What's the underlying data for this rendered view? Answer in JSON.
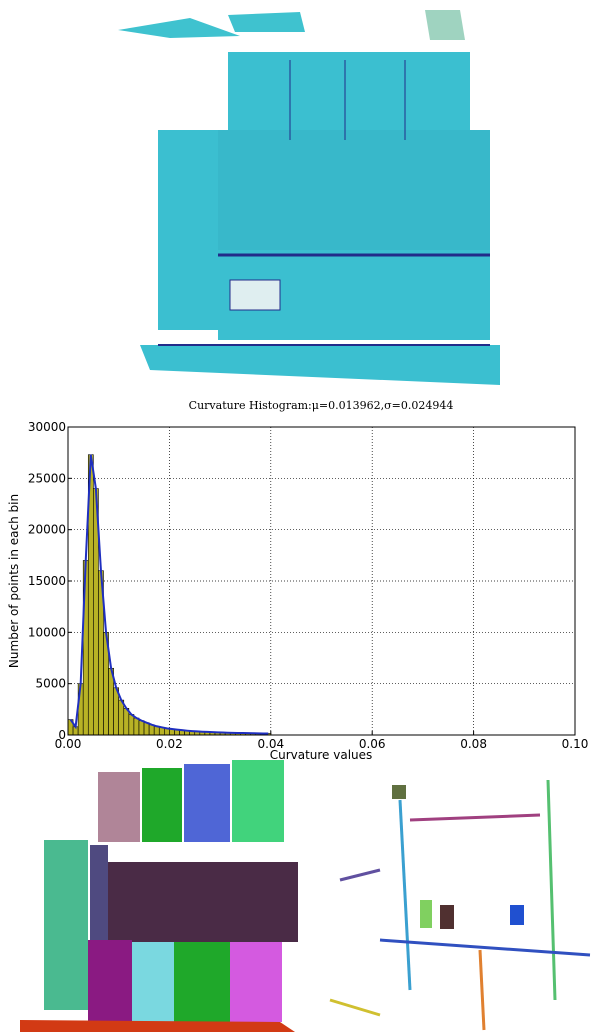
{
  "chart_data": {
    "type": "histogram",
    "title": "Curvature Histogram:μ=0.013962,σ=0.024944",
    "x_label": "Curvature values",
    "y_label": "Number of points in each bin",
    "bins": [
      0,
      0.001,
      0.002,
      0.003,
      0.004,
      0.005,
      0.006,
      0.007,
      0.008,
      0.009,
      0.01,
      0.011,
      0.012,
      0.013,
      0.014,
      0.015,
      0.016,
      0.017,
      0.018,
      0.019,
      0.02,
      0.021,
      0.022,
      0.023,
      0.024,
      0.025,
      0.026,
      0.027,
      0.028,
      0.029,
      0.03,
      0.031,
      0.032,
      0.033,
      0.034,
      0.035,
      0.036,
      0.037,
      0.038,
      0.039,
      0.04
    ],
    "values": [
      1500,
      800,
      5000,
      17000,
      27300,
      24000,
      16000,
      10000,
      6500,
      4600,
      3400,
      2600,
      2000,
      1650,
      1400,
      1200,
      1000,
      850,
      750,
      650,
      580,
      520,
      470,
      420,
      380,
      350,
      320,
      300,
      280,
      260,
      240,
      225,
      210,
      200,
      190,
      180,
      170,
      160,
      150,
      145
    ],
    "color": "#b8b225",
    "line_color": "#1f2fc0",
    "xlim": [
      0,
      0.1
    ],
    "ylim": [
      0,
      30000
    ],
    "xticks": [
      {
        "value": 0,
        "label": "0.00"
      },
      {
        "value": 0.02,
        "label": "0.02"
      },
      {
        "value": 0.04,
        "label": "0.04"
      },
      {
        "value": 0.06,
        "label": "0.06"
      },
      {
        "value": 0.08,
        "label": "0.08"
      },
      {
        "value": 0.1,
        "label": "0.10"
      }
    ],
    "yticks": [
      0,
      5000,
      10000,
      15000,
      20000,
      25000,
      30000
    ],
    "grid": true
  }
}
